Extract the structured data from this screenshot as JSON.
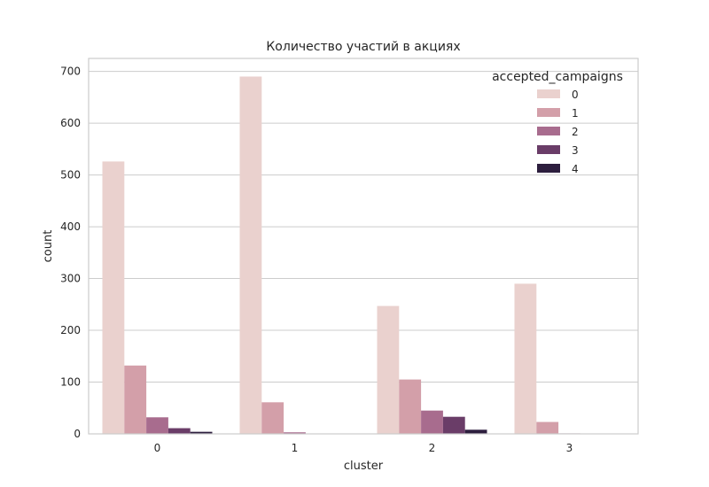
{
  "chart_data": {
    "type": "bar",
    "title": "Количество участий в акциях",
    "xlabel": "cluster",
    "ylabel": "count",
    "categories": [
      "0",
      "1",
      "2",
      "3"
    ],
    "ylim": [
      0,
      725
    ],
    "yticks": [
      0,
      100,
      200,
      300,
      400,
      500,
      600,
      700
    ],
    "grid": true,
    "legend": {
      "title": "accepted_campaigns",
      "position": "top-right"
    },
    "series": [
      {
        "name": "0",
        "color": "#ead1ce",
        "values": [
          526,
          690,
          247,
          290
        ]
      },
      {
        "name": "1",
        "color": "#d39fa9",
        "values": [
          132,
          61,
          105,
          23
        ]
      },
      {
        "name": "2",
        "color": "#a86c8e",
        "values": [
          32,
          3,
          45,
          1
        ]
      },
      {
        "name": "3",
        "color": "#6a3d68",
        "values": [
          11,
          0,
          33,
          0
        ]
      },
      {
        "name": "4",
        "color": "#2d1e3e",
        "values": [
          4,
          0,
          8,
          0
        ]
      }
    ]
  }
}
